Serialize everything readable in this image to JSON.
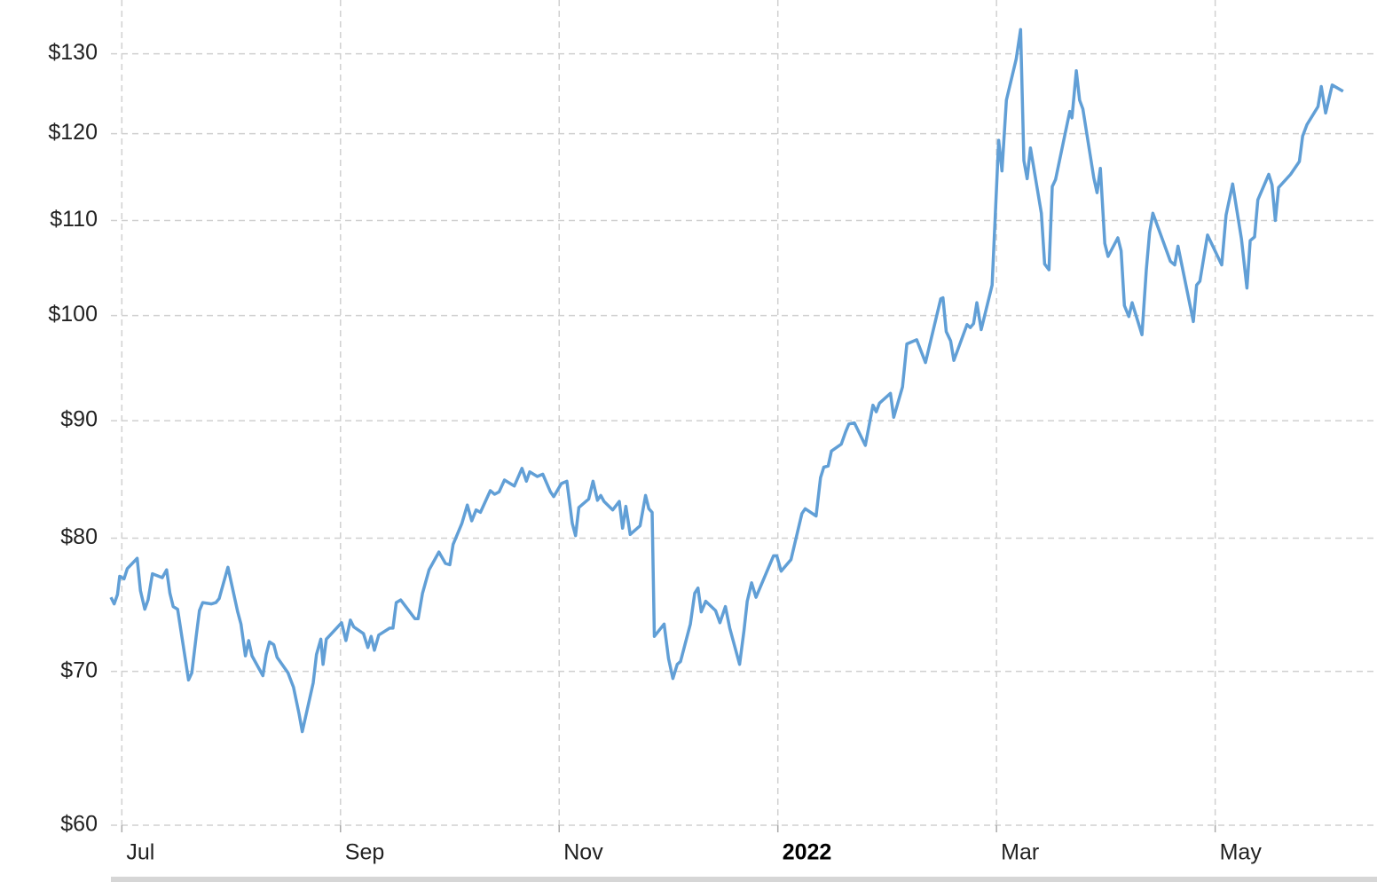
{
  "chart_data": {
    "type": "line",
    "log_scale": true,
    "grid": true,
    "xlim": [
      6.9,
      18.48
    ],
    "ylim": [
      60,
      137.2
    ],
    "xticks": [
      {
        "value": 7,
        "label": "Jul"
      },
      {
        "value": 9,
        "label": "Sep"
      },
      {
        "value": 11,
        "label": "Nov"
      },
      {
        "value": 13,
        "label": "2022"
      },
      {
        "value": 15,
        "label": "Mar"
      },
      {
        "value": 17,
        "label": "May"
      }
    ],
    "yticks": [
      {
        "value": 60,
        "label": "$60"
      },
      {
        "value": 70,
        "label": "$70"
      },
      {
        "value": 80,
        "label": "$80"
      },
      {
        "value": 90,
        "label": "$90"
      },
      {
        "value": 100,
        "label": "$100"
      },
      {
        "value": 110,
        "label": "$110"
      },
      {
        "value": 120,
        "label": "$120"
      },
      {
        "value": 130,
        "label": "$130"
      }
    ],
    "x": [
      6.9,
      6.93,
      6.96,
      6.98,
      7.02,
      7.05,
      7.14,
      7.17,
      7.21,
      7.24,
      7.28,
      7.37,
      7.41,
      7.44,
      7.47,
      7.51,
      7.61,
      7.64,
      7.68,
      7.71,
      7.74,
      7.82,
      7.86,
      7.89,
      7.97,
      8.06,
      8.09,
      8.13,
      8.16,
      8.19,
      8.29,
      8.32,
      8.35,
      8.39,
      8.42,
      8.52,
      8.57,
      8.62,
      8.65,
      8.75,
      8.78,
      8.82,
      8.84,
      8.87,
      9.01,
      9.05,
      9.09,
      9.12,
      9.21,
      9.25,
      9.28,
      9.31,
      9.35,
      9.45,
      9.48,
      9.51,
      9.55,
      9.68,
      9.71,
      9.75,
      9.81,
      9.9,
      9.96,
      10.0,
      10.03,
      10.11,
      10.16,
      10.2,
      10.24,
      10.28,
      10.37,
      10.41,
      10.45,
      10.5,
      10.59,
      10.66,
      10.7,
      10.73,
      10.8,
      10.85,
      10.92,
      10.95,
      11.02,
      11.07,
      11.12,
      11.15,
      11.18,
      11.27,
      11.31,
      11.35,
      11.38,
      11.41,
      11.49,
      11.55,
      11.58,
      11.61,
      11.65,
      11.74,
      11.79,
      11.82,
      11.85,
      11.87,
      11.96,
      12.0,
      12.04,
      12.08,
      12.11,
      12.2,
      12.24,
      12.27,
      12.3,
      12.34,
      12.43,
      12.47,
      12.52,
      12.56,
      12.65,
      12.69,
      12.72,
      12.76,
      12.8,
      12.96,
      12.99,
      13.03,
      13.12,
      13.22,
      13.25,
      13.35,
      13.39,
      13.42,
      13.46,
      13.49,
      13.58,
      13.62,
      13.65,
      13.7,
      13.8,
      13.87,
      13.9,
      13.93,
      14.03,
      14.06,
      14.14,
      14.18,
      14.27,
      14.35,
      14.49,
      14.51,
      14.54,
      14.58,
      14.61,
      14.73,
      14.76,
      14.79,
      14.82,
      14.86,
      14.96,
      15.02,
      15.05,
      15.09,
      15.18,
      15.22,
      15.25,
      15.28,
      15.31,
      15.41,
      15.44,
      15.48,
      15.51,
      15.54,
      15.67,
      15.69,
      15.73,
      15.76,
      15.79,
      15.89,
      15.92,
      15.95,
      15.99,
      16.02,
      16.11,
      16.14,
      16.17,
      16.21,
      16.24,
      16.33,
      16.37,
      16.4,
      16.43,
      16.59,
      16.63,
      16.66,
      16.8,
      16.83,
      16.86,
      16.89,
      16.93,
      17.06,
      17.1,
      17.16,
      17.24,
      17.29,
      17.32,
      17.36,
      17.39,
      17.49,
      17.52,
      17.55,
      17.58,
      17.69,
      17.77,
      17.8,
      17.84,
      17.94,
      17.97,
      18.01,
      18.07,
      18.17
    ],
    "series": [
      {
        "color": "#619fd6",
        "values": [
          75.4,
          74.9,
          75.6,
          77.0,
          76.8,
          77.6,
          78.4,
          75.9,
          74.5,
          75.2,
          77.2,
          76.9,
          77.5,
          75.7,
          74.7,
          74.5,
          69.4,
          69.9,
          72.5,
          74.4,
          75.0,
          74.9,
          75.0,
          75.3,
          77.7,
          74.3,
          73.4,
          71.1,
          72.2,
          71.1,
          69.7,
          71.2,
          72.1,
          71.9,
          71.0,
          69.9,
          68.9,
          67.1,
          65.9,
          69.2,
          71.2,
          72.3,
          70.5,
          72.3,
          73.5,
          72.2,
          73.7,
          73.2,
          72.7,
          71.7,
          72.5,
          71.5,
          72.6,
          73.1,
          73.1,
          75.0,
          75.2,
          73.8,
          73.8,
          75.7,
          77.5,
          78.9,
          78.0,
          77.9,
          79.5,
          81.2,
          82.7,
          81.4,
          82.3,
          82.1,
          83.9,
          83.6,
          83.8,
          84.8,
          84.3,
          85.8,
          84.7,
          85.5,
          85.1,
          85.3,
          83.8,
          83.4,
          84.5,
          84.7,
          81.2,
          80.2,
          82.5,
          83.2,
          84.7,
          83.1,
          83.5,
          83.0,
          82.3,
          83.0,
          80.8,
          82.6,
          80.3,
          81.0,
          83.5,
          82.4,
          82.1,
          72.5,
          73.4,
          70.9,
          69.5,
          70.5,
          70.7,
          73.4,
          75.7,
          76.1,
          74.3,
          75.1,
          74.4,
          73.5,
          74.7,
          73.1,
          70.5,
          72.9,
          75.1,
          76.5,
          75.4,
          78.6,
          78.6,
          77.4,
          78.3,
          82.0,
          82.4,
          81.8,
          85.0,
          85.9,
          86.0,
          87.3,
          87.9,
          89.0,
          89.7,
          89.8,
          87.8,
          91.4,
          90.8,
          91.6,
          92.5,
          90.3,
          93.1,
          97.2,
          97.6,
          95.4,
          101.7,
          101.8,
          98.4,
          97.5,
          95.6,
          99.1,
          98.8,
          99.2,
          101.3,
          98.6,
          103.1,
          119.2,
          115.6,
          124.1,
          129.3,
          133.2,
          116.8,
          114.7,
          118.3,
          110.8,
          105.3,
          104.7,
          113.8,
          114.6,
          122.7,
          121.9,
          127.8,
          124.1,
          123.0,
          114.8,
          113.1,
          115.9,
          107.5,
          106.1,
          108.1,
          106.7,
          101.0,
          99.9,
          101.3,
          98.1,
          104.7,
          108.7,
          110.8,
          105.6,
          105.2,
          107.2,
          99.4,
          103.1,
          103.5,
          105.6,
          108.4,
          105.2,
          110.6,
          114.1,
          108.0,
          102.8,
          107.8,
          108.2,
          112.3,
          115.2,
          114.0,
          110.0,
          113.7,
          115.2,
          116.7,
          119.7,
          121.1,
          123.3,
          125.8,
          122.5,
          126.0,
          125.2
        ]
      }
    ]
  }
}
